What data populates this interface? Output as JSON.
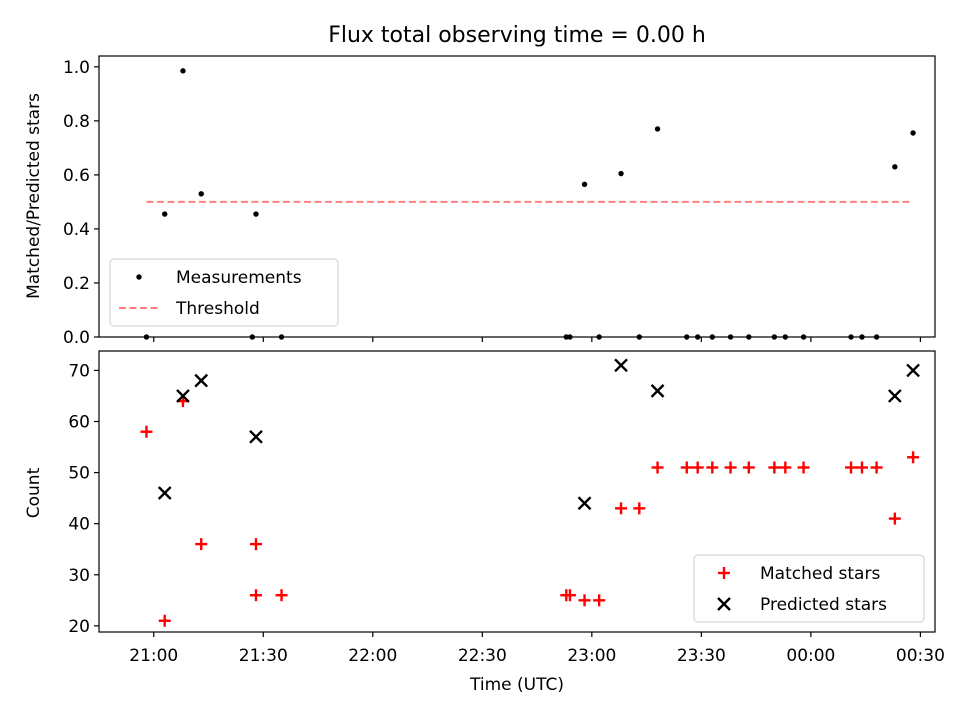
{
  "chart_data": [
    {
      "type": "scatter",
      "title": "Flux total observing time = 0.00 h",
      "xlabel": "",
      "ylabel": "Matched/Predicted stars",
      "ylim": [
        0,
        1.04
      ],
      "yticks": [
        "0.0",
        "0.2",
        "0.4",
        "0.6",
        "0.8",
        "1.0"
      ],
      "ytick_values": [
        0,
        0.2,
        0.4,
        0.6,
        0.8,
        1.0
      ],
      "legend_position": "lower-left",
      "series": [
        {
          "name": "Measurements",
          "marker": "dot",
          "color": "#000000",
          "points": [
            {
              "t": "20:58",
              "y": 0.0
            },
            {
              "t": "21:03",
              "y": 0.455
            },
            {
              "t": "21:08",
              "y": 0.985
            },
            {
              "t": "21:13",
              "y": 0.53
            },
            {
              "t": "21:27",
              "y": 0.0
            },
            {
              "t": "21:28",
              "y": 0.455
            },
            {
              "t": "21:35",
              "y": 0.0
            },
            {
              "t": "22:53",
              "y": 0.0
            },
            {
              "t": "22:54",
              "y": 0.0
            },
            {
              "t": "22:58",
              "y": 0.565
            },
            {
              "t": "23:02",
              "y": 0.0
            },
            {
              "t": "23:08",
              "y": 0.605
            },
            {
              "t": "23:13",
              "y": 0.0
            },
            {
              "t": "23:18",
              "y": 0.77
            },
            {
              "t": "23:26",
              "y": 0.0
            },
            {
              "t": "23:29",
              "y": 0.0
            },
            {
              "t": "23:33",
              "y": 0.0
            },
            {
              "t": "23:38",
              "y": 0.0
            },
            {
              "t": "23:43",
              "y": 0.0
            },
            {
              "t": "23:50",
              "y": 0.0
            },
            {
              "t": "23:53",
              "y": 0.0
            },
            {
              "t": "23:58",
              "y": 0.0
            },
            {
              "t": "00:11",
              "y": 0.0
            },
            {
              "t": "00:14",
              "y": 0.0
            },
            {
              "t": "00:18",
              "y": 0.0
            },
            {
              "t": "00:23",
              "y": 0.63
            },
            {
              "t": "00:28",
              "y": 0.755
            }
          ]
        },
        {
          "name": "Threshold",
          "marker": "dashed-line",
          "color": "#ff7f7f",
          "points": [
            {
              "t": "20:58",
              "y": 0.5
            },
            {
              "t": "00:28",
              "y": 0.5
            }
          ]
        }
      ]
    },
    {
      "type": "scatter",
      "title": "",
      "xlabel": "Time (UTC)",
      "ylabel": "Count",
      "ylim": [
        18.8,
        73.8
      ],
      "yticks": [
        "20",
        "30",
        "40",
        "50",
        "60",
        "70"
      ],
      "ytick_values": [
        20,
        30,
        40,
        50,
        60,
        70
      ],
      "xticks": [
        "21:00",
        "21:30",
        "22:00",
        "22:30",
        "23:00",
        "23:30",
        "00:00",
        "00:30"
      ],
      "xlim": [
        "20:45",
        "00:34"
      ],
      "legend_position": "lower-right",
      "series": [
        {
          "name": "Matched stars",
          "marker": "plus",
          "color": "#ff0000",
          "points": [
            {
              "t": "20:58",
              "y": 58
            },
            {
              "t": "21:03",
              "y": 21
            },
            {
              "t": "21:08",
              "y": 64
            },
            {
              "t": "21:13",
              "y": 36
            },
            {
              "t": "21:28",
              "y": 36
            },
            {
              "t": "21:28",
              "y": 26
            },
            {
              "t": "21:35",
              "y": 26
            },
            {
              "t": "22:53",
              "y": 26
            },
            {
              "t": "22:54",
              "y": 26
            },
            {
              "t": "22:58",
              "y": 25
            },
            {
              "t": "23:02",
              "y": 25
            },
            {
              "t": "23:08",
              "y": 43
            },
            {
              "t": "23:13",
              "y": 43
            },
            {
              "t": "23:18",
              "y": 51
            },
            {
              "t": "23:26",
              "y": 51
            },
            {
              "t": "23:29",
              "y": 51
            },
            {
              "t": "23:33",
              "y": 51
            },
            {
              "t": "23:38",
              "y": 51
            },
            {
              "t": "23:43",
              "y": 51
            },
            {
              "t": "23:50",
              "y": 51
            },
            {
              "t": "23:53",
              "y": 51
            },
            {
              "t": "23:58",
              "y": 51
            },
            {
              "t": "00:11",
              "y": 51
            },
            {
              "t": "00:14",
              "y": 51
            },
            {
              "t": "00:18",
              "y": 51
            },
            {
              "t": "00:23",
              "y": 41
            },
            {
              "t": "00:28",
              "y": 53
            }
          ]
        },
        {
          "name": "Predicted stars",
          "marker": "x",
          "color": "#000000",
          "points": [
            {
              "t": "21:03",
              "y": 46
            },
            {
              "t": "21:08",
              "y": 65
            },
            {
              "t": "21:13",
              "y": 68
            },
            {
              "t": "21:28",
              "y": 57
            },
            {
              "t": "22:58",
              "y": 44
            },
            {
              "t": "23:08",
              "y": 71
            },
            {
              "t": "23:18",
              "y": 66
            },
            {
              "t": "00:23",
              "y": 65
            },
            {
              "t": "00:28",
              "y": 70
            }
          ]
        }
      ]
    }
  ]
}
